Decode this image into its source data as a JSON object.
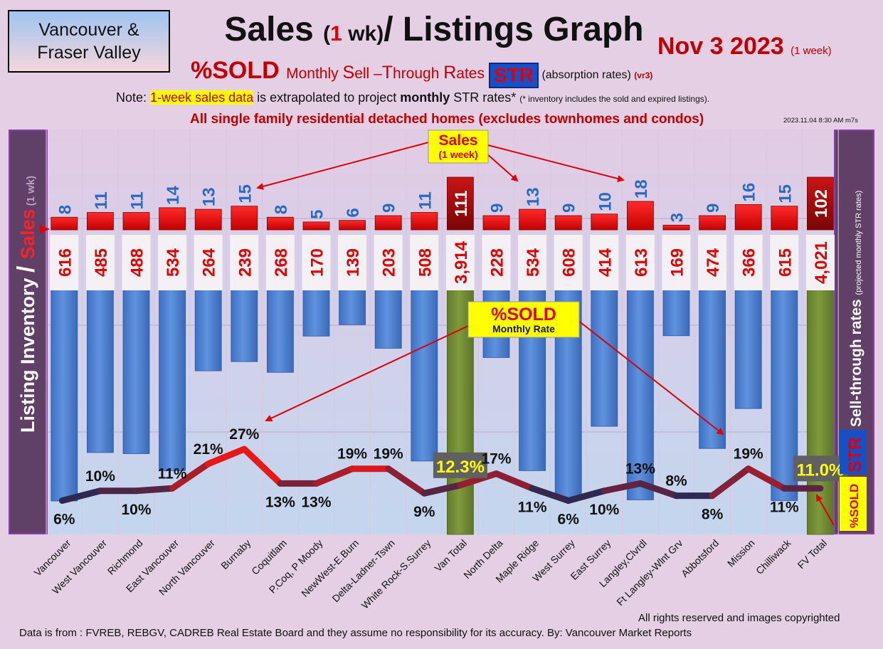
{
  "header": {
    "region_line1": "Vancouver &",
    "region_line2": "Fraser Valley",
    "title_a": "Sales ",
    "title_b": "(",
    "title_c": "1",
    "title_d": " wk)",
    "title_e": "/ Listings Graph",
    "date": "Nov 3  2023 ",
    "date_note": "(1 week)",
    "sub_a": "%SOLD ",
    "sub_b": "Monthly ",
    "sub_c": "S",
    "sub_d": "ell –",
    "sub_e": "T",
    "sub_f": "hrough ",
    "sub_g": "R",
    "sub_h": "ates",
    "str_badge": "STR",
    "sub_i": " (absorption rates) ",
    "sub_j": "(vr3)",
    "note_a": "Note: ",
    "note_b": "1-week sales data",
    "note_c": " is extrapolated to project ",
    "note_d": "monthly",
    "note_e": " STR rates* ",
    "note_f": "(* inventory includes the sold and expired listings).",
    "scope": "All single family residential detached homes (excludes townhomes and condos)",
    "timestamp": "2023.11.04 8:30 AM m7s"
  },
  "footer": {
    "copyright": "All rights reserved and  images copyrighted",
    "source": "Data is from : FVREB, REBGV, CADREB Real Estate Board and they assume no responsibility for its accuracy. By: Vancouver Market Reports"
  },
  "colors": {
    "inventory_bar": "#4b7fd0",
    "total_bar": "#6f8a32",
    "sales_bar": "#ee1111",
    "sales_total_bar": "#b01010",
    "str_line_high": "#e81818",
    "str_line_low": "#1e2a55",
    "panel": "#614068"
  },
  "chart_data": {
    "type": "bar",
    "categories": [
      "Vancouver",
      "West Vancouver",
      "Richmond",
      "East Vancouver",
      "North Vancouver",
      "Burnaby",
      "Coquitlam",
      "P.Coq, P Moody",
      "NewWest-E.Burn",
      "Delta-Ladner-Tswn",
      "White Rock-S.Surrey",
      "Van Total",
      "North Delta",
      "Maple Ridge",
      "West Surrey",
      "East Surrey",
      "Langley,Clvrdl",
      "Ft Langley-Wlnt Grv",
      "Abbotsford",
      "Mission",
      "Chilliwack",
      "FV Total"
    ],
    "inventory": [
      616,
      485,
      488,
      534,
      264,
      239,
      268,
      170,
      139,
      203,
      508,
      3914,
      228,
      534,
      608,
      414,
      613,
      169,
      474,
      366,
      615,
      4021
    ],
    "inventory_labels": [
      "616",
      "485",
      "488",
      "534",
      "264",
      "239",
      "268",
      "170",
      "139",
      "203",
      "508",
      "3,914",
      "228",
      "534",
      "608",
      "414",
      "613",
      "169",
      "474",
      "366",
      "615",
      "4,021"
    ],
    "sales": [
      8,
      11,
      11,
      14,
      13,
      15,
      8,
      5,
      6,
      9,
      11,
      111,
      9,
      13,
      9,
      10,
      18,
      3,
      9,
      16,
      15,
      102
    ],
    "str_percent": [
      6,
      10,
      10,
      11,
      21,
      27,
      13,
      13,
      19,
      19,
      9,
      12.3,
      17,
      11,
      6,
      10,
      13,
      8,
      8,
      19,
      11,
      11.0
    ],
    "str_labels": [
      "6%",
      "10%",
      "10%",
      "11%",
      "21%",
      "27%",
      "13%",
      "13%",
      "19%",
      "19%",
      "9%",
      "12.3%",
      "17%",
      "11%",
      "6%",
      "10%",
      "13%",
      "8%",
      "8%",
      "19%",
      "11%",
      "11.0%"
    ],
    "total_indices": [
      11,
      21
    ],
    "left_axis_label_a": "Listing Inventory ",
    "left_axis_label_b": "/ ",
    "left_axis_label_c": "Sales",
    "left_axis_label_d": " (1 wk)",
    "right_axis_label_a": "Sell-through rates ",
    "right_axis_label_b": "(projected monthly STR rates)",
    "right_str_badge": "STR",
    "right_sold_badge": "%SOLD",
    "callout_sales_title": "Sales",
    "callout_sales_sub": "(1 week)",
    "callout_sold_title": "%SOLD",
    "callout_sold_sub": "Monthly Rate"
  }
}
